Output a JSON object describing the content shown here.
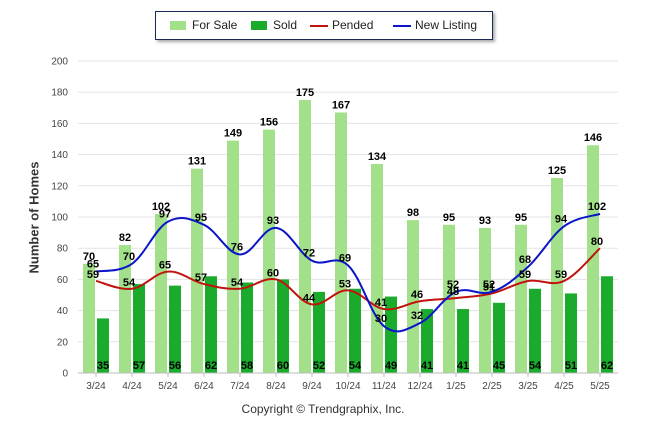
{
  "chart_data": {
    "type": "bar",
    "categories": [
      "3/24",
      "4/24",
      "5/24",
      "6/24",
      "7/24",
      "8/24",
      "9/24",
      "10/24",
      "11/24",
      "12/24",
      "1/25",
      "2/25",
      "3/25",
      "4/25",
      "5/25"
    ],
    "series": [
      {
        "name": "For Sale",
        "type": "bar",
        "color": "#a3e08a",
        "values": [
          70,
          82,
          102,
          131,
          149,
          156,
          175,
          167,
          134,
          98,
          95,
          93,
          95,
          125,
          146
        ]
      },
      {
        "name": "Sold",
        "type": "bar",
        "color": "#1aab2c",
        "values": [
          35,
          57,
          56,
          62,
          58,
          60,
          52,
          54,
          49,
          41,
          41,
          45,
          54,
          51,
          62
        ]
      },
      {
        "name": "Pended",
        "type": "line",
        "color": "#c0150e",
        "values": [
          59,
          54,
          65,
          57,
          54,
          60,
          44,
          53,
          41,
          46,
          48,
          51,
          59,
          59,
          80
        ]
      },
      {
        "name": "New Listing",
        "type": "line",
        "color": "#0b16c8",
        "values": [
          65,
          70,
          97,
          95,
          76,
          93,
          72,
          69,
          30,
          32,
          52,
          52,
          68,
          94,
          102
        ]
      }
    ],
    "ylabel": "Number of Homes",
    "xlabel": "",
    "ylim": [
      0,
      200
    ],
    "yticks": [
      0,
      20,
      40,
      60,
      80,
      100,
      120,
      140,
      160,
      180,
      200
    ],
    "grid": true,
    "legend": "top-center"
  },
  "footer": {
    "copyright": "Copyright © Trendgraphix, Inc."
  }
}
